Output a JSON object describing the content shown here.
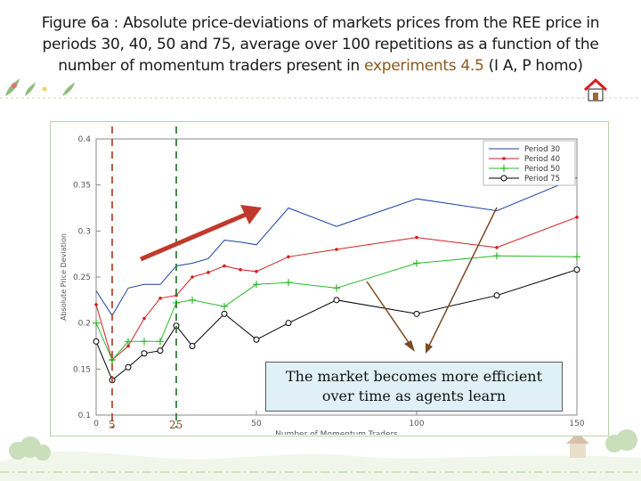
{
  "title": {
    "line1": "Figure 6a : Absolute price-deviations of markets  prices from the REE price in",
    "line2": "periods 30, 40, 50 and 75, average over 100 repetitions as a function of the",
    "line3_main": "number of momentum traders present in ",
    "line3_exp": "experiments 4.5",
    "line3_tail": " (I A, P homo)"
  },
  "callout": {
    "line1": "The market becomes more efficient",
    "line2": "over time as agents learn"
  },
  "markers": {
    "left_label": "5",
    "right_label": "25",
    "left_x": 5,
    "right_x": 25,
    "left_color": "#b24a32",
    "right_color": "#2f7d33"
  },
  "colors": {
    "trend_arrow": "#c0392b",
    "pointer_arrow": "#7a4a22",
    "frame": "#b9d4a6"
  },
  "icons": [
    "home-icon",
    "plant-decoration"
  ],
  "chart_data": {
    "type": "line",
    "xlabel": "Number of Momentum Traders",
    "ylabel": "Absolute Price Deviation",
    "xlim": [
      0,
      150
    ],
    "ylim": [
      0.1,
      0.4
    ],
    "xticks": [
      0,
      50,
      100,
      150
    ],
    "yticks": [
      0.1,
      0.15,
      0.2,
      0.25,
      0.3,
      0.35,
      0.4
    ],
    "ytick_labels": [
      "0.1",
      "0.15",
      "0.2",
      "0.25",
      "0.3",
      "0.35",
      "0.4"
    ],
    "xtick_labels": [
      "0",
      "50",
      "100",
      "150"
    ],
    "legend_position": "top-right",
    "grid": false,
    "series": [
      {
        "name": "Period 30",
        "color": "#1f3f9e",
        "marker": "none",
        "points": [
          [
            0,
            0.235
          ],
          [
            5,
            0.208
          ],
          [
            10,
            0.238
          ],
          [
            15,
            0.242
          ],
          [
            20,
            0.242
          ],
          [
            25,
            0.262
          ],
          [
            30,
            0.265
          ],
          [
            35,
            0.27
          ],
          [
            40,
            0.29
          ],
          [
            45,
            0.288
          ],
          [
            50,
            0.285
          ],
          [
            60,
            0.325
          ],
          [
            75,
            0.305
          ],
          [
            100,
            0.335
          ],
          [
            125,
            0.322
          ],
          [
            150,
            0.358
          ]
        ]
      },
      {
        "name": "Period 40",
        "color": "#d22020",
        "marker": "dot",
        "points": [
          [
            0,
            0.22
          ],
          [
            5,
            0.16
          ],
          [
            10,
            0.175
          ],
          [
            15,
            0.205
          ],
          [
            20,
            0.227
          ],
          [
            25,
            0.23
          ],
          [
            30,
            0.25
          ],
          [
            35,
            0.255
          ],
          [
            40,
            0.262
          ],
          [
            45,
            0.258
          ],
          [
            50,
            0.256
          ],
          [
            60,
            0.272
          ],
          [
            75,
            0.28
          ],
          [
            100,
            0.293
          ],
          [
            125,
            0.282
          ],
          [
            150,
            0.315
          ]
        ]
      },
      {
        "name": "Period 50",
        "color": "#2db82d",
        "marker": "plus",
        "points": [
          [
            0,
            0.2
          ],
          [
            5,
            0.16
          ],
          [
            10,
            0.18
          ],
          [
            15,
            0.18
          ],
          [
            20,
            0.18
          ],
          [
            25,
            0.222
          ],
          [
            30,
            0.225
          ],
          [
            40,
            0.218
          ],
          [
            50,
            0.242
          ],
          [
            60,
            0.244
          ],
          [
            75,
            0.238
          ],
          [
            100,
            0.265
          ],
          [
            125,
            0.273
          ],
          [
            150,
            0.272
          ]
        ]
      },
      {
        "name": "Period 75",
        "color": "#000000",
        "marker": "circle",
        "points": [
          [
            0,
            0.18
          ],
          [
            5,
            0.138
          ],
          [
            10,
            0.152
          ],
          [
            15,
            0.167
          ],
          [
            20,
            0.17
          ],
          [
            25,
            0.197
          ],
          [
            30,
            0.175
          ],
          [
            40,
            0.21
          ],
          [
            50,
            0.182
          ],
          [
            60,
            0.2
          ],
          [
            75,
            0.225
          ],
          [
            100,
            0.21
          ],
          [
            125,
            0.23
          ],
          [
            150,
            0.258
          ]
        ]
      }
    ]
  }
}
